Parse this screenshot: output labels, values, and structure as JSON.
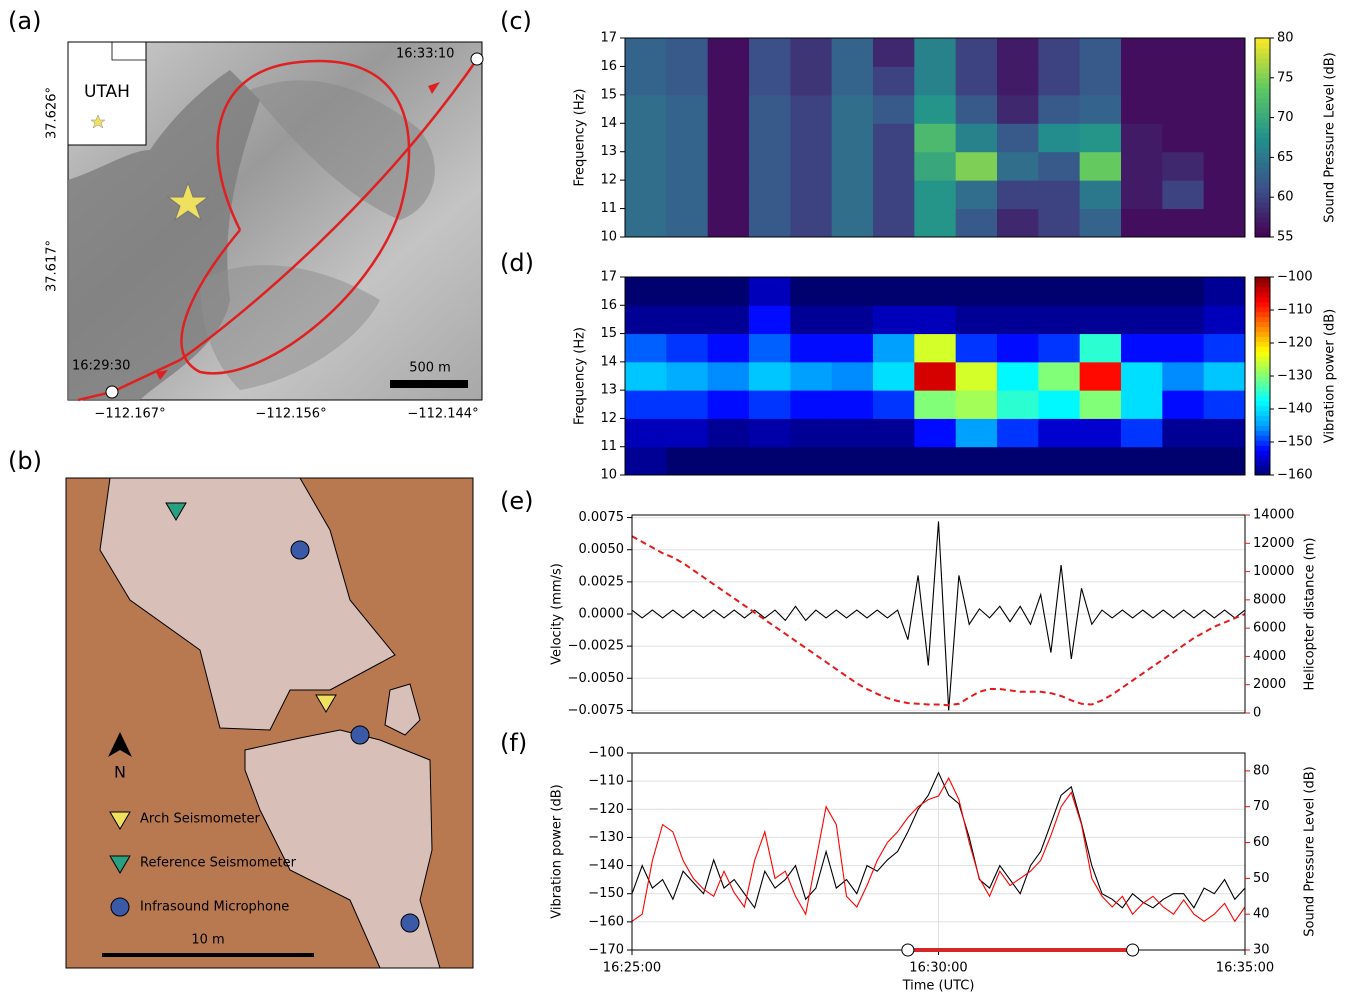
{
  "panel_labels": [
    "(a)",
    "(b)",
    "(c)",
    "(d)",
    "(e)",
    "(f)"
  ],
  "map": {
    "inset_label": "UTAH",
    "start_time": "16:29:30",
    "end_time": "16:33:10",
    "scale_label": "500 m",
    "yticks": [
      "37.626°",
      "37.617°"
    ],
    "xticks": [
      "−112.167°",
      "−112.156°",
      "−112.144°"
    ]
  },
  "diagram": {
    "north": "N",
    "legend": [
      "Arch Seismometer",
      "Reference Seismometer",
      "Infrasound Microphone"
    ],
    "scale_label": "10 m"
  },
  "chart_data": [
    {
      "type": "heatmap",
      "ylabel": "Frequency (Hz)",
      "colorbar_label": "Sound Pressure Level (dB)",
      "colormap": "viridis",
      "xlim": [
        "16:25:00",
        "16:35:00"
      ],
      "xbins": [
        "16:25:00",
        "16:25:40",
        "16:26:20",
        "16:27:00",
        "16:27:40",
        "16:28:20",
        "16:29:00",
        "16:29:40",
        "16:30:20",
        "16:31:00",
        "16:31:40",
        "16:32:20",
        "16:33:00",
        "16:33:40",
        "16:34:20",
        "16:35:00"
      ],
      "ybins": [
        10,
        11,
        12,
        13,
        14,
        15,
        16,
        17
      ],
      "ylim": [
        10,
        17
      ],
      "yticks": [
        10,
        11,
        12,
        13,
        14,
        15,
        16,
        17
      ],
      "clim": [
        55,
        80
      ],
      "cticks": [
        55,
        60,
        65,
        70,
        75,
        80
      ],
      "z": [
        [
          64,
          63,
          56,
          62,
          60,
          64,
          60,
          68,
          62,
          58,
          60,
          63,
          56,
          56,
          56
        ],
        [
          64,
          63,
          56,
          62,
          60,
          64,
          60,
          68,
          64,
          60,
          60,
          65,
          57,
          60,
          56
        ],
        [
          64,
          63,
          56,
          62,
          60,
          64,
          60,
          70,
          75,
          64,
          62,
          74,
          57,
          58,
          56
        ],
        [
          64,
          63,
          56,
          62,
          60,
          64,
          60,
          72,
          66,
          62,
          67,
          68,
          57,
          56,
          56
        ],
        [
          64,
          63,
          56,
          62,
          60,
          64,
          62,
          68,
          62,
          58,
          62,
          63,
          56,
          56,
          56
        ],
        [
          63,
          62,
          56,
          61,
          59,
          63,
          60,
          66,
          60,
          57,
          60,
          62,
          56,
          56,
          56
        ],
        [
          63,
          62,
          56,
          61,
          59,
          63,
          58,
          66,
          60,
          57,
          60,
          62,
          56,
          56,
          56
        ]
      ]
    },
    {
      "type": "heatmap",
      "ylabel": "Frequency (Hz)",
      "colorbar_label": "Vibration power (dB)",
      "colormap": "jet",
      "xlim": [
        "16:25:00",
        "16:35:00"
      ],
      "xbins": [
        "16:25:00",
        "16:25:40",
        "16:26:20",
        "16:27:00",
        "16:27:40",
        "16:28:20",
        "16:29:00",
        "16:29:40",
        "16:30:20",
        "16:31:00",
        "16:31:40",
        "16:32:20",
        "16:33:00",
        "16:33:40",
        "16:34:20",
        "16:35:00"
      ],
      "ybins": [
        10,
        11,
        12,
        13,
        14,
        15,
        16,
        17
      ],
      "ylim": [
        10,
        17
      ],
      "yticks": [
        10,
        11,
        12,
        13,
        14,
        15,
        16,
        17
      ],
      "clim": [
        -160,
        -100
      ],
      "cticks": [
        {
          "value": -160,
          "label": "−160"
        },
        {
          "value": -150,
          "label": "−150"
        },
        {
          "value": -140,
          "label": "−140"
        },
        {
          "value": -130,
          "label": "−130"
        },
        {
          "value": -120,
          "label": "−120"
        },
        {
          "value": -110,
          "label": "−110"
        },
        {
          "value": -100,
          "label": "−100"
        }
      ],
      "z": [
        [
          -158,
          -160,
          -160,
          -160,
          -160,
          -160,
          -160,
          -160,
          -160,
          -160,
          -160,
          -160,
          -160,
          -160,
          -160
        ],
        [
          -156,
          -156,
          -158,
          -157,
          -158,
          -158,
          -158,
          -152,
          -145,
          -150,
          -155,
          -155,
          -150,
          -158,
          -158
        ],
        [
          -150,
          -150,
          -152,
          -150,
          -152,
          -152,
          -150,
          -130,
          -128,
          -135,
          -138,
          -130,
          -140,
          -152,
          -150
        ],
        [
          -142,
          -144,
          -146,
          -142,
          -145,
          -146,
          -140,
          -105,
          -125,
          -138,
          -130,
          -108,
          -140,
          -146,
          -142
        ],
        [
          -148,
          -150,
          -152,
          -148,
          -152,
          -152,
          -145,
          -125,
          -150,
          -152,
          -150,
          -135,
          -152,
          -152,
          -150
        ],
        [
          -158,
          -158,
          -158,
          -152,
          -158,
          -158,
          -156,
          -156,
          -158,
          -158,
          -158,
          -158,
          -158,
          -158,
          -156
        ],
        [
          -160,
          -160,
          -160,
          -156,
          -160,
          -160,
          -160,
          -160,
          -160,
          -160,
          -160,
          -160,
          -160,
          -160,
          -158
        ]
      ]
    },
    {
      "type": "line",
      "ylabel": "Velocity (mm/s)",
      "y2label": "Helicopter distance (m)",
      "grid": true,
      "x": [
        "16:25:00",
        "16:25:10",
        "16:25:20",
        "16:25:30",
        "16:25:40",
        "16:25:50",
        "16:26:00",
        "16:26:10",
        "16:26:20",
        "16:26:30",
        "16:26:40",
        "16:26:50",
        "16:27:00",
        "16:27:10",
        "16:27:20",
        "16:27:30",
        "16:27:40",
        "16:27:50",
        "16:28:00",
        "16:28:10",
        "16:28:20",
        "16:28:30",
        "16:28:40",
        "16:28:50",
        "16:29:00",
        "16:29:10",
        "16:29:20",
        "16:29:30",
        "16:29:40",
        "16:29:50",
        "16:30:00",
        "16:30:10",
        "16:30:20",
        "16:30:30",
        "16:30:40",
        "16:30:50",
        "16:31:00",
        "16:31:10",
        "16:31:20",
        "16:31:30",
        "16:31:40",
        "16:31:50",
        "16:32:00",
        "16:32:10",
        "16:32:20",
        "16:32:30",
        "16:32:40",
        "16:32:50",
        "16:33:00",
        "16:33:10",
        "16:33:20",
        "16:33:30",
        "16:33:40",
        "16:33:50",
        "16:34:00",
        "16:34:10",
        "16:34:20",
        "16:34:30",
        "16:34:40",
        "16:34:50",
        "16:35:00"
      ],
      "xlim": [
        "16:25:00",
        "16:35:00"
      ],
      "ylim": [
        -0.0077,
        0.0077
      ],
      "yticks": [
        0.0075,
        {
          "value": 0.005,
          "label": "0.0050"
        },
        {
          "value": 0.0025,
          "label": "0.0025"
        },
        {
          "value": 0,
          "label": "0.0000"
        },
        {
          "value": -0.0025,
          "label": "−0.0025"
        },
        {
          "value": -0.005,
          "label": "−0.0050"
        },
        {
          "value": -0.0075,
          "label": "−0.0075"
        }
      ],
      "y2lim": [
        0,
        14000
      ],
      "y2ticks": [
        0,
        2000,
        4000,
        6000,
        8000,
        10000,
        12000,
        14000
      ],
      "series": [
        {
          "color": "#000000",
          "values": [
            0.0003,
            -0.0003,
            0.0003,
            -0.0003,
            0.0003,
            -0.0003,
            0.0003,
            -0.0003,
            0.0003,
            -0.0003,
            0.0003,
            -0.0003,
            0.0003,
            -0.0003,
            0.0003,
            -0.0005,
            0.0006,
            -0.0005,
            0.0003,
            -0.0003,
            0.0003,
            -0.0003,
            0.0003,
            -0.0003,
            0.0003,
            -0.0003,
            0.0003,
            -0.002,
            0.003,
            -0.004,
            0.0072,
            -0.0075,
            0.003,
            -0.0008,
            0.0004,
            -0.0003,
            0.0006,
            -0.0006,
            0.0006,
            -0.0008,
            0.0015,
            -0.003,
            0.0038,
            -0.0035,
            0.002,
            -0.0008,
            0.0003,
            -0.0003,
            0.0003,
            -0.0003,
            0.0003,
            -0.0003,
            0.0003,
            -0.0003,
            0.0003,
            -0.0003,
            0.0003,
            -0.0003,
            0.0003,
            -0.0003,
            0.0003
          ]
        },
        {
          "color": "#e8191b",
          "dashed": true,
          "axis": "y2",
          "values": [
            12500,
            12100,
            11700,
            11300,
            11000,
            10600,
            10100,
            9600,
            9100,
            8600,
            8100,
            7600,
            7100,
            6600,
            6100,
            5600,
            5100,
            4600,
            4100,
            3600,
            3100,
            2600,
            2100,
            1700,
            1350,
            1050,
            850,
            700,
            650,
            600,
            600,
            550,
            650,
            1100,
            1500,
            1700,
            1700,
            1600,
            1500,
            1500,
            1500,
            1400,
            1200,
            900,
            650,
            600,
            900,
            1300,
            1800,
            2300,
            2800,
            3300,
            3800,
            4300,
            4800,
            5300,
            5700,
            6100,
            6400,
            6700,
            7000
          ]
        }
      ]
    },
    {
      "type": "line",
      "ylabel": "Vibration power (dB)",
      "y2label": "Sound Pressure Level (dB)",
      "xlabel": "Time (UTC)",
      "grid": true,
      "x": [
        "16:25:00",
        "16:25:10",
        "16:25:20",
        "16:25:30",
        "16:25:40",
        "16:25:50",
        "16:26:00",
        "16:26:10",
        "16:26:20",
        "16:26:30",
        "16:26:40",
        "16:26:50",
        "16:27:00",
        "16:27:10",
        "16:27:20",
        "16:27:30",
        "16:27:40",
        "16:27:50",
        "16:28:00",
        "16:28:10",
        "16:28:20",
        "16:28:30",
        "16:28:40",
        "16:28:50",
        "16:29:00",
        "16:29:10",
        "16:29:20",
        "16:29:30",
        "16:29:40",
        "16:29:50",
        "16:30:00",
        "16:30:10",
        "16:30:20",
        "16:30:30",
        "16:30:40",
        "16:30:50",
        "16:31:00",
        "16:31:10",
        "16:31:20",
        "16:31:30",
        "16:31:40",
        "16:31:50",
        "16:32:00",
        "16:32:10",
        "16:32:20",
        "16:32:30",
        "16:32:40",
        "16:32:50",
        "16:33:00",
        "16:33:10",
        "16:33:20",
        "16:33:30",
        "16:33:40",
        "16:33:50",
        "16:34:00",
        "16:34:10",
        "16:34:20",
        "16:34:30",
        "16:34:40",
        "16:34:50",
        "16:35:00"
      ],
      "xlim": [
        "16:25:00",
        "16:35:00"
      ],
      "xticks": [
        "16:25:00",
        "16:30:00",
        "16:35:00"
      ],
      "ylim": [
        -170,
        -100
      ],
      "yticks": [
        {
          "value": -170,
          "label": "−170"
        },
        {
          "value": -160,
          "label": "−160"
        },
        {
          "value": -150,
          "label": "−150"
        },
        {
          "value": -140,
          "label": "−140"
        },
        {
          "value": -130,
          "label": "−130"
        },
        {
          "value": -120,
          "label": "−120"
        },
        {
          "value": -110,
          "label": "−110"
        },
        {
          "value": -100,
          "label": "−100"
        }
      ],
      "y2lim": [
        30,
        85
      ],
      "y2ticks": [
        30,
        40,
        50,
        60,
        70,
        80
      ],
      "span": [
        "16:29:30",
        "16:33:10"
      ],
      "span_color": "#d62728",
      "series": [
        {
          "color": "#000000",
          "values": [
            -150,
            -140,
            -148,
            -145,
            -152,
            -142,
            -146,
            -150,
            -138,
            -148,
            -145,
            -150,
            -155,
            -142,
            -148,
            -145,
            -140,
            -152,
            -148,
            -135,
            -148,
            -145,
            -150,
            -140,
            -142,
            -138,
            -135,
            -128,
            -120,
            -115,
            -107,
            -115,
            -118,
            -130,
            -145,
            -148,
            -140,
            -145,
            -150,
            -140,
            -135,
            -125,
            -115,
            -112,
            -125,
            -140,
            -150,
            -152,
            -155,
            -150,
            -153,
            -155,
            -152,
            -150,
            -150,
            -155,
            -148,
            -150,
            -145,
            -152,
            -148
          ]
        },
        {
          "color": "#ff0000",
          "axis": "y2",
          "values": [
            38,
            40,
            55,
            65,
            63,
            55,
            50,
            47,
            45,
            52,
            46,
            42,
            55,
            63,
            50,
            52,
            45,
            40,
            55,
            70,
            65,
            45,
            42,
            48,
            55,
            60,
            63,
            67,
            70,
            72,
            73,
            78,
            72,
            60,
            50,
            45,
            52,
            48,
            50,
            52,
            55,
            62,
            70,
            74,
            65,
            50,
            45,
            42,
            45,
            40,
            43,
            45,
            42,
            40,
            44,
            40,
            38,
            40,
            43,
            38,
            42
          ]
        }
      ]
    }
  ]
}
